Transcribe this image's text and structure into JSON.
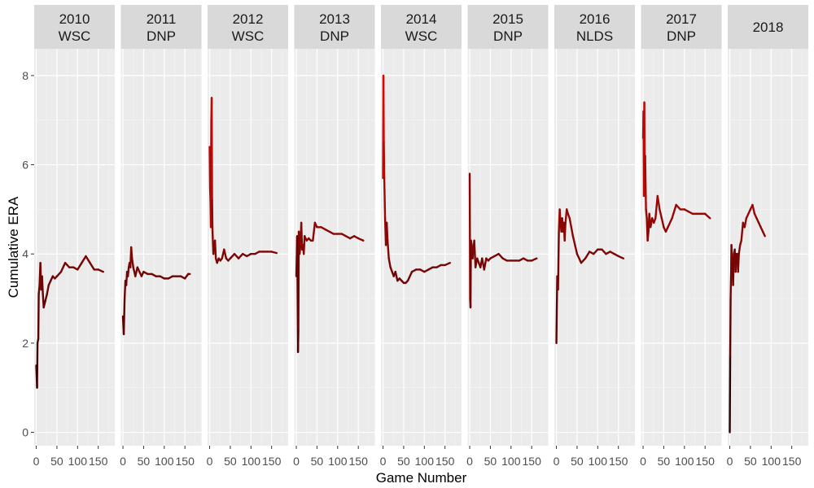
{
  "chart_data": {
    "type": "line",
    "facet_by": "season",
    "xlabel": "Game Number",
    "ylabel": "Cumulative ERA",
    "xlim": [
      -5,
      190
    ],
    "ylim": [
      -0.3,
      8.6
    ],
    "x_ticks": [
      0,
      50,
      100,
      150
    ],
    "x_tick_labels": [
      "0",
      "50",
      "100",
      "150"
    ],
    "y_ticks": [
      0,
      2,
      4,
      6,
      8
    ],
    "y_tick_labels": [
      "0",
      "2",
      "4",
      "6",
      "8"
    ],
    "grid": true,
    "color_scale": "black to red by ERA value",
    "facets": [
      {
        "year": "2010",
        "result": "WSC",
        "points": [
          [
            0,
            1.5
          ],
          [
            2,
            1.0
          ],
          [
            3,
            2.0
          ],
          [
            5,
            2.1
          ],
          [
            6,
            3.1
          ],
          [
            8,
            3.3
          ],
          [
            10,
            3.8
          ],
          [
            12,
            3.2
          ],
          [
            14,
            3.5
          ],
          [
            16,
            3.1
          ],
          [
            18,
            2.8
          ],
          [
            22,
            2.95
          ],
          [
            26,
            3.1
          ],
          [
            30,
            3.3
          ],
          [
            35,
            3.4
          ],
          [
            40,
            3.5
          ],
          [
            45,
            3.45
          ],
          [
            50,
            3.5
          ],
          [
            60,
            3.6
          ],
          [
            70,
            3.8
          ],
          [
            80,
            3.7
          ],
          [
            90,
            3.7
          ],
          [
            100,
            3.65
          ],
          [
            110,
            3.8
          ],
          [
            120,
            3.95
          ],
          [
            130,
            3.8
          ],
          [
            140,
            3.65
          ],
          [
            150,
            3.65
          ],
          [
            162,
            3.6
          ]
        ]
      },
      {
        "year": "2011",
        "result": "DNP",
        "points": [
          [
            0,
            2.6
          ],
          [
            2,
            2.2
          ],
          [
            4,
            3.0
          ],
          [
            6,
            3.4
          ],
          [
            8,
            3.3
          ],
          [
            10,
            3.6
          ],
          [
            12,
            3.5
          ],
          [
            14,
            3.7
          ],
          [
            16,
            3.8
          ],
          [
            18,
            3.7
          ],
          [
            20,
            4.15
          ],
          [
            22,
            3.9
          ],
          [
            25,
            3.7
          ],
          [
            30,
            3.5
          ],
          [
            35,
            3.7
          ],
          [
            40,
            3.6
          ],
          [
            45,
            3.5
          ],
          [
            50,
            3.6
          ],
          [
            60,
            3.55
          ],
          [
            70,
            3.55
          ],
          [
            80,
            3.5
          ],
          [
            90,
            3.5
          ],
          [
            100,
            3.45
          ],
          [
            110,
            3.45
          ],
          [
            120,
            3.5
          ],
          [
            130,
            3.5
          ],
          [
            140,
            3.5
          ],
          [
            150,
            3.45
          ],
          [
            158,
            3.55
          ],
          [
            162,
            3.55
          ]
        ]
      },
      {
        "year": "2012",
        "result": "WSC",
        "points": [
          [
            0,
            6.4
          ],
          [
            1,
            5.5
          ],
          [
            2,
            5.2
          ],
          [
            3,
            4.6
          ],
          [
            4,
            7.0
          ],
          [
            5,
            7.5
          ],
          [
            6,
            5.2
          ],
          [
            7,
            4.5
          ],
          [
            9,
            4.0
          ],
          [
            11,
            4.2
          ],
          [
            13,
            4.3
          ],
          [
            15,
            3.9
          ],
          [
            18,
            3.8
          ],
          [
            22,
            3.9
          ],
          [
            26,
            3.85
          ],
          [
            30,
            3.9
          ],
          [
            35,
            4.1
          ],
          [
            40,
            3.9
          ],
          [
            45,
            3.85
          ],
          [
            50,
            3.9
          ],
          [
            60,
            4.0
          ],
          [
            70,
            3.9
          ],
          [
            80,
            4.0
          ],
          [
            90,
            3.95
          ],
          [
            100,
            4.0
          ],
          [
            110,
            4.0
          ],
          [
            120,
            4.05
          ],
          [
            130,
            4.05
          ],
          [
            140,
            4.05
          ],
          [
            150,
            4.05
          ],
          [
            162,
            4.02
          ]
        ]
      },
      {
        "year": "2013",
        "result": "DNP",
        "points": [
          [
            0,
            3.5
          ],
          [
            2,
            4.4
          ],
          [
            4,
            1.8
          ],
          [
            5,
            2.3
          ],
          [
            6,
            4.5
          ],
          [
            8,
            4.0
          ],
          [
            10,
            4.2
          ],
          [
            12,
            4.7
          ],
          [
            14,
            4.1
          ],
          [
            16,
            4.2
          ],
          [
            18,
            4.0
          ],
          [
            20,
            4.4
          ],
          [
            25,
            4.3
          ],
          [
            30,
            4.35
          ],
          [
            35,
            4.3
          ],
          [
            40,
            4.3
          ],
          [
            45,
            4.7
          ],
          [
            50,
            4.6
          ],
          [
            60,
            4.6
          ],
          [
            70,
            4.55
          ],
          [
            80,
            4.5
          ],
          [
            90,
            4.45
          ],
          [
            100,
            4.45
          ],
          [
            110,
            4.45
          ],
          [
            120,
            4.4
          ],
          [
            130,
            4.35
          ],
          [
            140,
            4.4
          ],
          [
            150,
            4.35
          ],
          [
            162,
            4.3
          ]
        ]
      },
      {
        "year": "2014",
        "result": "WSC",
        "points": [
          [
            0,
            5.7
          ],
          [
            1,
            8.0
          ],
          [
            2,
            6.5
          ],
          [
            3,
            5.7
          ],
          [
            5,
            4.8
          ],
          [
            7,
            4.2
          ],
          [
            9,
            4.7
          ],
          [
            11,
            4.3
          ],
          [
            14,
            3.9
          ],
          [
            18,
            3.7
          ],
          [
            22,
            3.6
          ],
          [
            26,
            3.5
          ],
          [
            30,
            3.6
          ],
          [
            35,
            3.4
          ],
          [
            40,
            3.45
          ],
          [
            45,
            3.4
          ],
          [
            50,
            3.35
          ],
          [
            55,
            3.35
          ],
          [
            60,
            3.4
          ],
          [
            70,
            3.6
          ],
          [
            80,
            3.65
          ],
          [
            90,
            3.65
          ],
          [
            100,
            3.6
          ],
          [
            110,
            3.65
          ],
          [
            120,
            3.7
          ],
          [
            130,
            3.7
          ],
          [
            140,
            3.75
          ],
          [
            150,
            3.75
          ],
          [
            162,
            3.8
          ]
        ]
      },
      {
        "year": "2015",
        "result": "DNP",
        "points": [
          [
            0,
            5.8
          ],
          [
            1,
            3.0
          ],
          [
            2,
            2.8
          ],
          [
            3,
            4.3
          ],
          [
            5,
            4.2
          ],
          [
            7,
            3.9
          ],
          [
            9,
            4.1
          ],
          [
            11,
            4.3
          ],
          [
            14,
            3.7
          ],
          [
            18,
            3.9
          ],
          [
            22,
            3.8
          ],
          [
            26,
            3.7
          ],
          [
            30,
            3.9
          ],
          [
            35,
            3.65
          ],
          [
            40,
            3.9
          ],
          [
            45,
            3.85
          ],
          [
            50,
            3.9
          ],
          [
            60,
            3.95
          ],
          [
            70,
            4.0
          ],
          [
            80,
            3.9
          ],
          [
            90,
            3.85
          ],
          [
            100,
            3.85
          ],
          [
            110,
            3.85
          ],
          [
            120,
            3.85
          ],
          [
            130,
            3.9
          ],
          [
            140,
            3.85
          ],
          [
            150,
            3.85
          ],
          [
            162,
            3.9
          ]
        ]
      },
      {
        "year": "2016",
        "result": "NLDS",
        "points": [
          [
            0,
            2.0
          ],
          [
            2,
            3.5
          ],
          [
            4,
            3.2
          ],
          [
            6,
            4.5
          ],
          [
            8,
            5.0
          ],
          [
            10,
            4.7
          ],
          [
            12,
            4.5
          ],
          [
            14,
            4.8
          ],
          [
            16,
            4.5
          ],
          [
            18,
            4.7
          ],
          [
            20,
            4.3
          ],
          [
            22,
            4.7
          ],
          [
            25,
            5.0
          ],
          [
            28,
            4.9
          ],
          [
            32,
            4.8
          ],
          [
            36,
            4.6
          ],
          [
            40,
            4.4
          ],
          [
            45,
            4.2
          ],
          [
            50,
            4.0
          ],
          [
            60,
            3.8
          ],
          [
            70,
            3.9
          ],
          [
            80,
            4.05
          ],
          [
            90,
            4.0
          ],
          [
            100,
            4.1
          ],
          [
            110,
            4.1
          ],
          [
            120,
            4.0
          ],
          [
            130,
            4.05
          ],
          [
            140,
            4.0
          ],
          [
            150,
            3.95
          ],
          [
            162,
            3.9
          ]
        ]
      },
      {
        "year": "2017",
        "result": "DNP",
        "points": [
          [
            0,
            6.6
          ],
          [
            1,
            7.2
          ],
          [
            2,
            5.3
          ],
          [
            3,
            7.4
          ],
          [
            4,
            6.0
          ],
          [
            5,
            6.2
          ],
          [
            7,
            5.0
          ],
          [
            9,
            4.8
          ],
          [
            11,
            4.3
          ],
          [
            13,
            4.5
          ],
          [
            15,
            4.9
          ],
          [
            18,
            4.6
          ],
          [
            22,
            4.8
          ],
          [
            26,
            4.7
          ],
          [
            30,
            4.8
          ],
          [
            35,
            5.3
          ],
          [
            40,
            5.0
          ],
          [
            45,
            4.8
          ],
          [
            50,
            4.6
          ],
          [
            55,
            4.5
          ],
          [
            60,
            4.6
          ],
          [
            70,
            4.8
          ],
          [
            80,
            5.1
          ],
          [
            90,
            5.0
          ],
          [
            100,
            5.0
          ],
          [
            110,
            4.95
          ],
          [
            120,
            4.9
          ],
          [
            130,
            4.9
          ],
          [
            140,
            4.9
          ],
          [
            150,
            4.9
          ],
          [
            162,
            4.8
          ]
        ]
      },
      {
        "year": "2018",
        "result": "",
        "points": [
          [
            0,
            0.0
          ],
          [
            1,
            1.7
          ],
          [
            2,
            3.0
          ],
          [
            3,
            3.5
          ],
          [
            4,
            4.2
          ],
          [
            6,
            3.8
          ],
          [
            8,
            3.3
          ],
          [
            10,
            4.0
          ],
          [
            12,
            4.1
          ],
          [
            14,
            3.6
          ],
          [
            16,
            4.0
          ],
          [
            18,
            4.0
          ],
          [
            20,
            3.6
          ],
          [
            22,
            4.0
          ],
          [
            25,
            4.2
          ],
          [
            28,
            4.3
          ],
          [
            32,
            4.7
          ],
          [
            36,
            4.6
          ],
          [
            40,
            4.8
          ],
          [
            45,
            4.9
          ],
          [
            50,
            5.0
          ],
          [
            55,
            5.1
          ],
          [
            60,
            4.9
          ],
          [
            65,
            4.8
          ],
          [
            70,
            4.7
          ],
          [
            75,
            4.6
          ],
          [
            80,
            4.5
          ],
          [
            85,
            4.4
          ]
        ]
      }
    ]
  }
}
